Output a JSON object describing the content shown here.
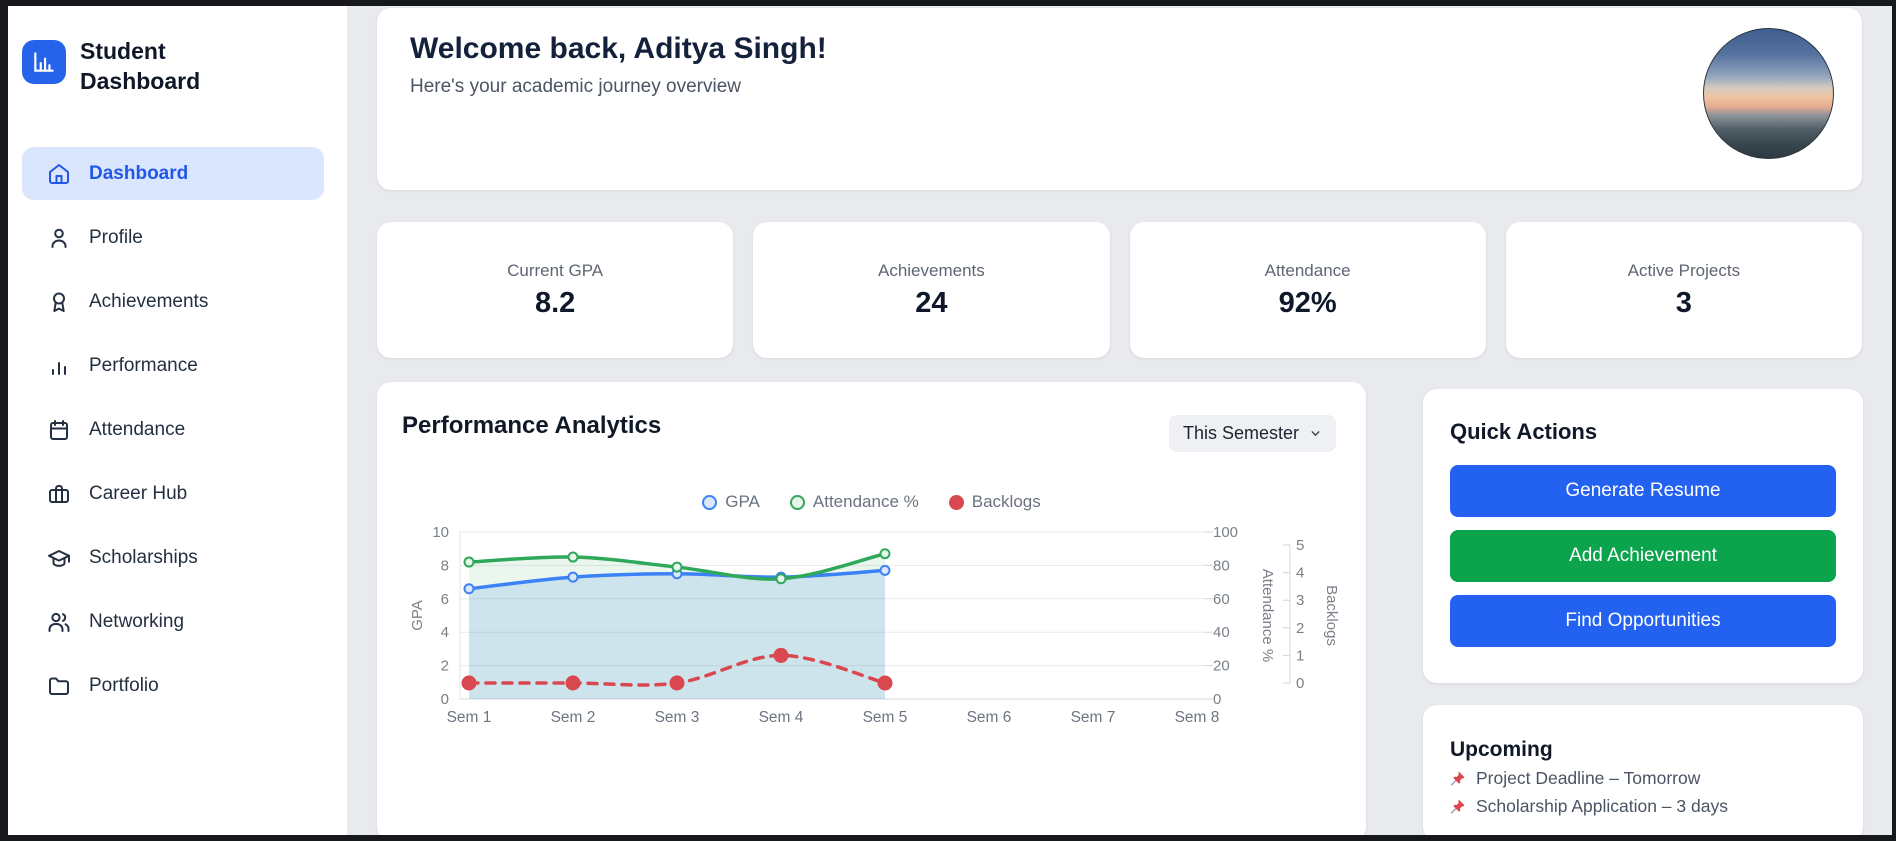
{
  "app": {
    "title": "Student Dashboard"
  },
  "sidebar": {
    "items": [
      {
        "label": "Dashboard",
        "icon": "home",
        "active": true
      },
      {
        "label": "Profile",
        "icon": "user",
        "active": false
      },
      {
        "label": "Achievements",
        "icon": "award",
        "active": false
      },
      {
        "label": "Performance",
        "icon": "bar-chart",
        "active": false
      },
      {
        "label": "Attendance",
        "icon": "calendar",
        "active": false
      },
      {
        "label": "Career Hub",
        "icon": "briefcase",
        "active": false
      },
      {
        "label": "Scholarships",
        "icon": "graduation-cap",
        "active": false
      },
      {
        "label": "Networking",
        "icon": "users",
        "active": false
      },
      {
        "label": "Portfolio",
        "icon": "folder",
        "active": false
      }
    ]
  },
  "header": {
    "title": "Welcome back, Aditya Singh!",
    "subtitle": "Here's your academic journey overview"
  },
  "stats": [
    {
      "label": "Current GPA",
      "value": "8.2"
    },
    {
      "label": "Achievements",
      "value": "24"
    },
    {
      "label": "Attendance",
      "value": "92%"
    },
    {
      "label": "Active Projects",
      "value": "3"
    }
  ],
  "analytics": {
    "title": "Performance Analytics",
    "filter": "This Semester"
  },
  "chart_data": {
    "type": "line",
    "title": "Performance Analytics",
    "categories": [
      "Sem 1",
      "Sem 2",
      "Sem 3",
      "Sem 4",
      "Sem 5",
      "Sem 6",
      "Sem 7",
      "Sem 8"
    ],
    "series": [
      {
        "name": "GPA",
        "axis": "gpa",
        "color": "#3b82f6",
        "marker_fill": "#dbe7fb",
        "area_fill": "rgba(59,130,246,0.16)",
        "style": "solid",
        "marker": "hollow",
        "values": [
          6.6,
          7.3,
          7.5,
          7.3,
          7.7,
          null,
          null,
          null
        ]
      },
      {
        "name": "Attendance %",
        "axis": "attendance",
        "color": "#2fa85a",
        "marker_fill": "#e6f6ea",
        "area_fill": "rgba(47,168,90,0.10)",
        "style": "solid",
        "marker": "hollow",
        "values": [
          82,
          85,
          79,
          72,
          87,
          null,
          null,
          null
        ]
      },
      {
        "name": "Backlogs",
        "axis": "backlogs",
        "color": "#d9484e",
        "marker_fill": "#d9484e",
        "area_fill": null,
        "style": "dashed",
        "marker": "solid",
        "values": [
          0,
          0,
          0,
          1,
          0,
          null,
          null,
          null
        ]
      }
    ],
    "axes": {
      "gpa": {
        "label": "GPA",
        "min": 0,
        "max": 10,
        "ticks": [
          0,
          2,
          4,
          6,
          8,
          10
        ],
        "position": "left"
      },
      "attendance": {
        "label": "Attendance %",
        "min": 0,
        "max": 100,
        "ticks": [
          0,
          20,
          40,
          60,
          80,
          100
        ],
        "position": "right"
      },
      "backlogs": {
        "label": "Backlogs",
        "min": 0,
        "max": 5,
        "ticks": [
          0,
          1,
          2,
          3,
          4,
          5
        ],
        "position": "right-outer"
      }
    },
    "legend_position": "top",
    "grid": true
  },
  "quick_actions": {
    "title": "Quick Actions",
    "buttons": [
      {
        "label": "Generate Resume",
        "color": "#2361f0"
      },
      {
        "label": "Add Achievement",
        "color": "#0ba44c"
      },
      {
        "label": "Find Opportunities",
        "color": "#2361f0"
      }
    ]
  },
  "upcoming": {
    "title": "Upcoming",
    "items": [
      "Project Deadline – Tomorrow",
      "Scholarship Application – 3 days"
    ]
  }
}
